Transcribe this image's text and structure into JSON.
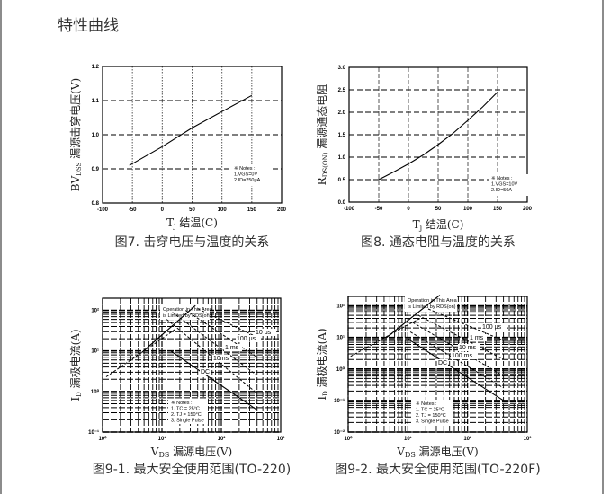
{
  "page": {
    "title": "特性曲线"
  },
  "chart_data": [
    {
      "type": "line",
      "caption": "图7. 击穿电压与温度的关系",
      "xlabel": {
        "main": "T",
        "sub": "j",
        "rest": " 结温(C)"
      },
      "ylabel": {
        "main": "BV",
        "sub": "DSS",
        "rest": " 漏源击穿电压(V)"
      },
      "xlim": [
        -100,
        200
      ],
      "ylim": [
        0.8,
        1.2
      ],
      "xticks": [
        -100,
        -50,
        0,
        50,
        100,
        150,
        200
      ],
      "xtick_labels": [
        "-100",
        "-50",
        "0",
        "50",
        "100",
        "150",
        "200"
      ],
      "yticks": [
        0.8,
        0.9,
        1.0,
        1.1,
        1.2
      ],
      "ytick_labels": [
        "0.8",
        "0.9",
        "1.0",
        "1.1",
        "1.2"
      ],
      "grid": true,
      "series": [
        {
          "values": [
            [
              -55,
              0.91
            ],
            [
              0,
              0.965
            ],
            [
              50,
              1.02
            ],
            [
              100,
              1.068
            ],
            [
              150,
              1.115
            ]
          ]
        }
      ],
      "notes": [
        "※ Notes :",
        "1.VGS=0V",
        "2.ID=250μA"
      ]
    },
    {
      "type": "line",
      "caption": "图8. 通态电阻与温度的关系",
      "xlabel": {
        "main": "T",
        "sub": "j",
        "rest": " 结温(C)"
      },
      "ylabel": {
        "main": "R",
        "sub": "DS(ON)",
        "rest": " 漏源通态电阻"
      },
      "xlim": [
        -100,
        200
      ],
      "ylim": [
        0,
        3.0
      ],
      "xticks": [
        -100,
        -50,
        0,
        50,
        100,
        150,
        200
      ],
      "xtick_labels": [
        "-100",
        "-50",
        "0",
        "50",
        "100",
        "150",
        "200"
      ],
      "yticks": [
        0,
        0.5,
        1.0,
        1.5,
        2.0,
        2.5,
        3.0
      ],
      "ytick_labels": [
        "0.0",
        "0.5",
        "1.0",
        "1.5",
        "2.0",
        "2.5",
        "3.0"
      ],
      "grid": true,
      "series": [
        {
          "values": [
            [
              -50,
              0.5
            ],
            [
              -25,
              0.67
            ],
            [
              0,
              0.85
            ],
            [
              25,
              1.05
            ],
            [
              50,
              1.28
            ],
            [
              75,
              1.53
            ],
            [
              100,
              1.82
            ],
            [
              125,
              2.12
            ],
            [
              150,
              2.45
            ]
          ]
        }
      ],
      "notes": [
        "※ Notes :",
        "1.VGS=10V",
        "2.ID=50A"
      ]
    },
    {
      "type": "line",
      "scale": "log-log",
      "caption": "图9-1. 最大安全使用范围(TO-220)",
      "xlabel": {
        "main": "V",
        "sub": "DS",
        "rest": " 漏源电压(V)"
      },
      "ylabel": {
        "main": "I",
        "sub": "D",
        "rest": " 漏极电流(A)"
      },
      "xlim": [
        1,
        1000
      ],
      "ylim": [
        0.1,
        200
      ],
      "xticks": [
        1,
        10,
        100,
        1000
      ],
      "xtick_labels": [
        "10⁰",
        "10¹",
        "10²",
        "10³"
      ],
      "yticks": [
        0.1,
        1,
        10,
        100
      ],
      "ytick_labels": [
        "10⁻¹",
        "10⁰",
        "10¹",
        "10²"
      ],
      "grid": true,
      "series": [
        {
          "name": "Rds limit",
          "values": [
            [
              1.15,
              2.3
            ],
            [
              10,
              20
            ],
            [
              17,
              35
            ]
          ]
        },
        {
          "name": "10 μs",
          "label": "10 μs",
          "values": [
            [
              40,
              110
            ],
            [
              400,
              22
            ]
          ]
        },
        {
          "name": "100 μs",
          "label": "100 μs",
          "values": [
            [
              25,
              100
            ],
            [
              400,
              7
            ]
          ]
        },
        {
          "name": "1 ms",
          "label": "1 ms",
          "values": [
            [
              15,
              90
            ],
            [
              400,
              2.5
            ]
          ]
        },
        {
          "name": "10 ms",
          "label": "10ms",
          "values": [
            [
              12,
              60
            ],
            [
              400,
              0.9
            ]
          ]
        },
        {
          "name": "DC",
          "label": "DC",
          "values": [
            [
              14,
              10
            ],
            [
              400,
              0.35
            ]
          ]
        }
      ],
      "operation_box": [
        "Operation in This Area",
        "is Limited by RDS(on)"
      ],
      "notes": [
        "※ Notes :",
        "1. TC = 25°C",
        "2. TJ = 150°C",
        "3. Single Pulse"
      ]
    },
    {
      "type": "line",
      "scale": "log-log",
      "caption": "图9-2. 最大安全使用范围(TO-220F)",
      "xlabel": {
        "main": "V",
        "sub": "DS",
        "rest": " 漏源电压(V)"
      },
      "ylabel": {
        "main": "I",
        "sub": "D",
        "rest": " 漏极电流(A)"
      },
      "xlim": [
        1,
        1000
      ],
      "ylim": [
        0.01,
        200
      ],
      "xticks": [
        1,
        10,
        100,
        1000
      ],
      "xtick_labels": [
        "10⁰",
        "10¹",
        "10²",
        "10³"
      ],
      "yticks": [
        0.01,
        0.1,
        1,
        10,
        100
      ],
      "ytick_labels": [
        "10⁻²",
        "10⁻¹",
        "10⁰",
        "10¹",
        "10²"
      ],
      "grid": true,
      "series": [
        {
          "name": "Rds limit",
          "values": [
            [
              1.1,
              2.5
            ],
            [
              10,
              25
            ],
            [
              16,
              40
            ]
          ]
        },
        {
          "name": "100 μs",
          "label": "100 μs",
          "values": [
            [
              22,
              80
            ],
            [
              400,
              8
            ]
          ]
        },
        {
          "name": "1 ms",
          "label": "1 ms",
          "values": [
            [
              15,
              50
            ],
            [
              400,
              2
            ]
          ]
        },
        {
          "name": "10 ms",
          "label": "10 ms",
          "values": [
            [
              12,
              30
            ],
            [
              400,
              0.6
            ]
          ]
        },
        {
          "name": "100 ms",
          "label": "100 ms",
          "values": [
            [
              11,
              15
            ],
            [
              400,
              0.25
            ]
          ]
        },
        {
          "name": "DC",
          "label": "DC",
          "values": [
            [
              10,
              9
            ],
            [
              400,
              0.1
            ]
          ]
        }
      ],
      "operation_box": [
        "Operation in This Area",
        "is Limited by RDS(on)"
      ],
      "notes": [
        "※ Notes :",
        "1. TC = 25°C",
        "2. TJ = 150°C",
        "3. Single Pulse"
      ]
    }
  ]
}
